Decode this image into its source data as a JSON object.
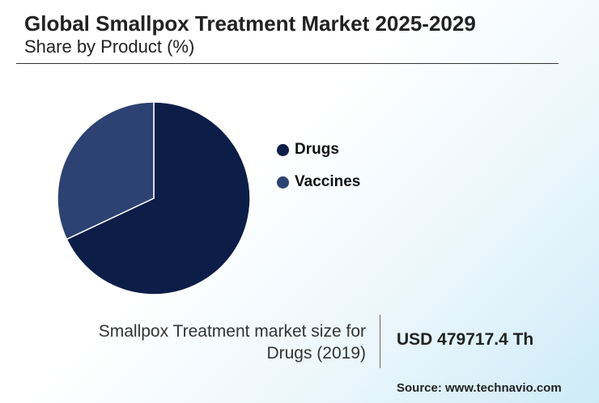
{
  "header": {
    "title": "Global Smallpox Treatment Market 2025-2029",
    "subtitle": "Share by Product (%)"
  },
  "colors": {
    "drugs": "#0c1d48",
    "vaccines": "#2d4272",
    "slice_border": "#ffffff"
  },
  "chart_data": {
    "type": "pie",
    "title": "Global Smallpox Treatment Market 2025-2029",
    "subtitle": "Share by Product (%)",
    "categories": [
      "Drugs",
      "Vaccines"
    ],
    "values": [
      68,
      32
    ],
    "legend_position": "right"
  },
  "legend": {
    "items": [
      {
        "label": "Drugs"
      },
      {
        "label": "Vaccines"
      }
    ]
  },
  "stat": {
    "label": "Smallpox Treatment market size for Drugs (2019)",
    "value": "USD 479717.4 Th"
  },
  "source": "Source: www.technavio.com"
}
